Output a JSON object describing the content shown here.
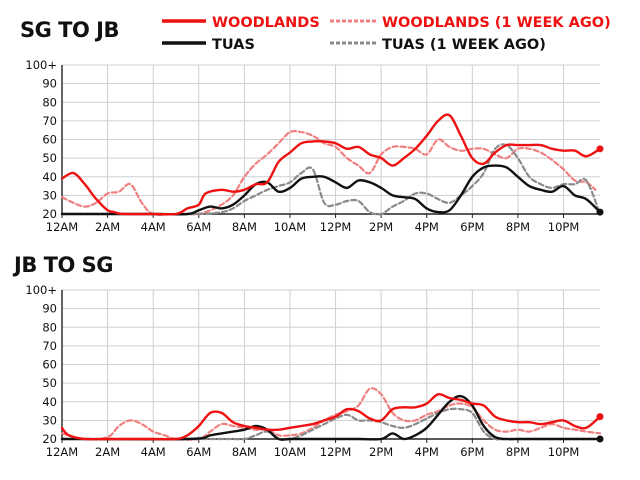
{
  "colors": {
    "woodlands": "#ee1111",
    "woodlands_prev": "#f08080",
    "tuas": "#111111",
    "tuas_prev": "#8a8a8a"
  },
  "legend": [
    {
      "name": "WOODLANDS",
      "color": "#ee1111",
      "style": "solid"
    },
    {
      "name": "WOODLANDS (1 WEEK AGO)",
      "color": "#f08080",
      "style": "dashed"
    },
    {
      "name": "TUAS",
      "color": "#111111",
      "style": "solid"
    },
    {
      "name": "TUAS (1 WEEK AGO)",
      "color": "#8a8a8a",
      "style": "dashed"
    }
  ],
  "chart_data": [
    {
      "type": "line",
      "title": "SG TO JB",
      "x_tick_labels": [
        "12AM",
        "2AM",
        "4AM",
        "6AM",
        "8AM",
        "10AM",
        "12PM",
        "2PM",
        "4PM",
        "6PM",
        "8PM",
        "10PM"
      ],
      "y_tick_labels": [
        "100+",
        "90",
        "80",
        "70",
        "60",
        "50",
        "40",
        "30",
        "20"
      ],
      "ylim": [
        20,
        100
      ],
      "xlim": [
        0,
        23.6
      ],
      "x_unit": "hour",
      "grid": true,
      "legend_position": "top",
      "series": [
        {
          "name": "WOODLANDS",
          "style": "solid",
          "end_marker": true,
          "x": [
            0,
            0.5,
            1,
            1.5,
            2,
            2.3,
            2.7,
            4,
            5,
            5.5,
            6,
            6.3,
            7,
            7.5,
            8,
            8.5,
            9,
            9.5,
            10,
            10.5,
            11,
            11.5,
            12,
            12.5,
            13,
            13.5,
            14,
            14.5,
            15,
            15.5,
            16,
            16.5,
            17,
            17.5,
            18,
            18.5,
            19,
            19.5,
            20,
            20.5,
            21,
            21.5,
            22,
            22.5,
            23,
            23.6
          ],
          "y": [
            39,
            42,
            36,
            28,
            22,
            21,
            20,
            20,
            20,
            23,
            25,
            31,
            33,
            32,
            33,
            36,
            37,
            48,
            53,
            58,
            59,
            59,
            58,
            55,
            56,
            52,
            50,
            46,
            50,
            55,
            62,
            70,
            73,
            62,
            50,
            47,
            53,
            57,
            57,
            57,
            57,
            55,
            54,
            54,
            51,
            55
          ]
        },
        {
          "name": "WOODLANDS (1 WEEK AGO)",
          "style": "dashed",
          "x": [
            0,
            0.5,
            1,
            1.5,
            2,
            2.5,
            3,
            3.5,
            4,
            5,
            5.5,
            6,
            6.5,
            7,
            7.5,
            8,
            8.5,
            9,
            9.5,
            10,
            10.5,
            11,
            11.5,
            12,
            12.5,
            13,
            13.5,
            14,
            14.5,
            15,
            15.5,
            16,
            16.5,
            17,
            17.5,
            18,
            18.5,
            19,
            19.5,
            20,
            20.5,
            21,
            21.5,
            22,
            22.5,
            23,
            23.4
          ],
          "y": [
            29,
            26,
            24,
            26,
            31,
            32,
            36,
            26,
            20,
            20,
            20,
            20,
            22,
            25,
            30,
            40,
            47,
            52,
            58,
            64,
            64,
            62,
            58,
            56,
            50,
            46,
            42,
            52,
            56,
            56,
            55,
            52,
            60,
            56,
            54,
            55,
            55,
            52,
            50,
            55,
            55,
            53,
            49,
            44,
            38,
            37,
            33
          ]
        },
        {
          "name": "TUAS",
          "style": "solid",
          "end_marker": true,
          "x": [
            0,
            2,
            4,
            5.5,
            6,
            6.5,
            7,
            7.5,
            8,
            8.5,
            9,
            9.5,
            10,
            10.5,
            11,
            11.5,
            12,
            12.5,
            13,
            13.5,
            14,
            14.5,
            15,
            15.5,
            16,
            16.5,
            17,
            17.5,
            18,
            18.5,
            19,
            19.5,
            20,
            20.5,
            21,
            21.5,
            22,
            22.5,
            23,
            23.6
          ],
          "y": [
            20,
            20,
            20,
            20,
            22,
            24,
            23,
            25,
            30,
            36,
            37,
            32,
            34,
            39,
            40,
            40,
            37,
            34,
            38,
            37,
            34,
            30,
            29,
            28,
            23,
            21,
            22,
            30,
            40,
            45,
            46,
            45,
            40,
            35,
            33,
            32,
            35,
            30,
            28,
            21
          ]
        },
        {
          "name": "TUAS (1 WEEK AGO)",
          "style": "dashed",
          "x": [
            0,
            4,
            6,
            7,
            7.5,
            8,
            8.5,
            9,
            9.5,
            10,
            10.5,
            11,
            11.5,
            12,
            12.5,
            13,
            13.5,
            14,
            14.5,
            15,
            15.5,
            16,
            16.5,
            17,
            17.5,
            18,
            18.5,
            19,
            19.5,
            20,
            20.5,
            21,
            21.5,
            22,
            22.5,
            23,
            23.6
          ],
          "y": [
            20,
            20,
            20,
            21,
            23,
            27,
            30,
            33,
            35,
            37,
            42,
            44,
            26,
            25,
            27,
            27,
            21,
            20,
            24,
            27,
            31,
            31,
            28,
            26,
            30,
            35,
            42,
            55,
            57,
            50,
            40,
            36,
            34,
            36,
            36,
            38,
            20
          ]
        }
      ]
    },
    {
      "type": "line",
      "title": "JB TO SG",
      "x_tick_labels": [
        "12AM",
        "2AM",
        "4AM",
        "6AM",
        "8AM",
        "10AM",
        "12PM",
        "2PM",
        "4PM",
        "6PM",
        "8PM",
        "10PM"
      ],
      "y_tick_labels": [
        "100+",
        "90",
        "80",
        "70",
        "60",
        "50",
        "40",
        "30",
        "20"
      ],
      "ylim": [
        20,
        100
      ],
      "xlim": [
        0,
        23.6
      ],
      "x_unit": "hour",
      "grid": true,
      "series": [
        {
          "name": "WOODLANDS",
          "style": "solid",
          "end_marker": true,
          "x": [
            0,
            0.3,
            1,
            2,
            4,
            5,
            5.5,
            6,
            6.5,
            7,
            7.5,
            8,
            8.5,
            9,
            9.5,
            10,
            10.5,
            11,
            11.5,
            12,
            12.5,
            13,
            13.5,
            14,
            14.5,
            15,
            15.5,
            16,
            16.5,
            17,
            17.5,
            18,
            18.5,
            19,
            19.5,
            20,
            20.5,
            21,
            21.5,
            22,
            22.5,
            23,
            23.6
          ],
          "y": [
            26,
            22,
            20,
            20,
            20,
            20,
            22,
            27,
            34,
            34,
            29,
            27,
            26,
            25,
            25,
            26,
            27,
            28,
            30,
            32,
            36,
            35,
            31,
            30,
            36,
            37,
            37,
            39,
            44,
            42,
            41,
            39,
            38,
            32,
            30,
            29,
            29,
            28,
            29,
            30,
            27,
            26,
            32
          ]
        },
        {
          "name": "WOODLANDS (1 WEEK AGO)",
          "style": "dashed",
          "x": [
            0,
            1,
            2,
            2.5,
            3,
            3.5,
            4,
            4.5,
            5,
            6,
            6.5,
            7,
            7.5,
            8,
            8.5,
            9,
            9.5,
            10,
            10.5,
            11,
            11.5,
            12,
            12.5,
            13,
            13.5,
            14,
            14.5,
            15,
            15.5,
            16,
            16.5,
            17,
            17.5,
            18,
            18.5,
            19,
            19.5,
            20,
            20.5,
            21,
            21.5,
            22,
            22.5,
            23,
            23.6
          ],
          "y": [
            23,
            20,
            21,
            27,
            30,
            28,
            24,
            22,
            20,
            20,
            24,
            28,
            27,
            26,
            25,
            25,
            22,
            22,
            23,
            26,
            30,
            33,
            35,
            38,
            47,
            44,
            34,
            30,
            30,
            33,
            35,
            38,
            39,
            37,
            30,
            25,
            24,
            25,
            24,
            26,
            28,
            26,
            25,
            24,
            23
          ]
        },
        {
          "name": "TUAS",
          "style": "solid",
          "end_marker": true,
          "x": [
            0,
            5.5,
            6.5,
            7,
            7.5,
            8,
            8.5,
            9,
            9.5,
            10,
            11,
            12,
            13,
            14,
            14.5,
            15,
            15.5,
            16,
            16.5,
            17,
            17.5,
            18,
            18.5,
            19,
            19.5,
            20,
            21,
            22,
            23,
            23.6
          ],
          "y": [
            20,
            20,
            22,
            23,
            24,
            25,
            27,
            25,
            20,
            20,
            20,
            20,
            20,
            20,
            23,
            20,
            22,
            26,
            33,
            40,
            43,
            38,
            27,
            21,
            20,
            20,
            20,
            20,
            20,
            20
          ]
        },
        {
          "name": "TUAS (1 WEEK AGO)",
          "style": "dashed",
          "x": [
            0,
            5.5,
            6,
            6.5,
            7,
            7.5,
            8,
            8.5,
            9,
            9.5,
            10,
            10.5,
            11,
            11.5,
            12,
            12.5,
            13,
            13.5,
            14,
            14.5,
            15,
            15.5,
            16,
            16.5,
            17,
            17.5,
            18,
            18.5,
            19,
            19.5,
            20,
            21,
            22,
            23,
            23.6
          ],
          "y": [
            20,
            20,
            20,
            20,
            20,
            20,
            20,
            22,
            24,
            20,
            20,
            22,
            25,
            28,
            31,
            33,
            30,
            30,
            29,
            27,
            26,
            28,
            31,
            34,
            36,
            36,
            34,
            24,
            20,
            20,
            20,
            20,
            20,
            20,
            20
          ]
        }
      ]
    }
  ]
}
